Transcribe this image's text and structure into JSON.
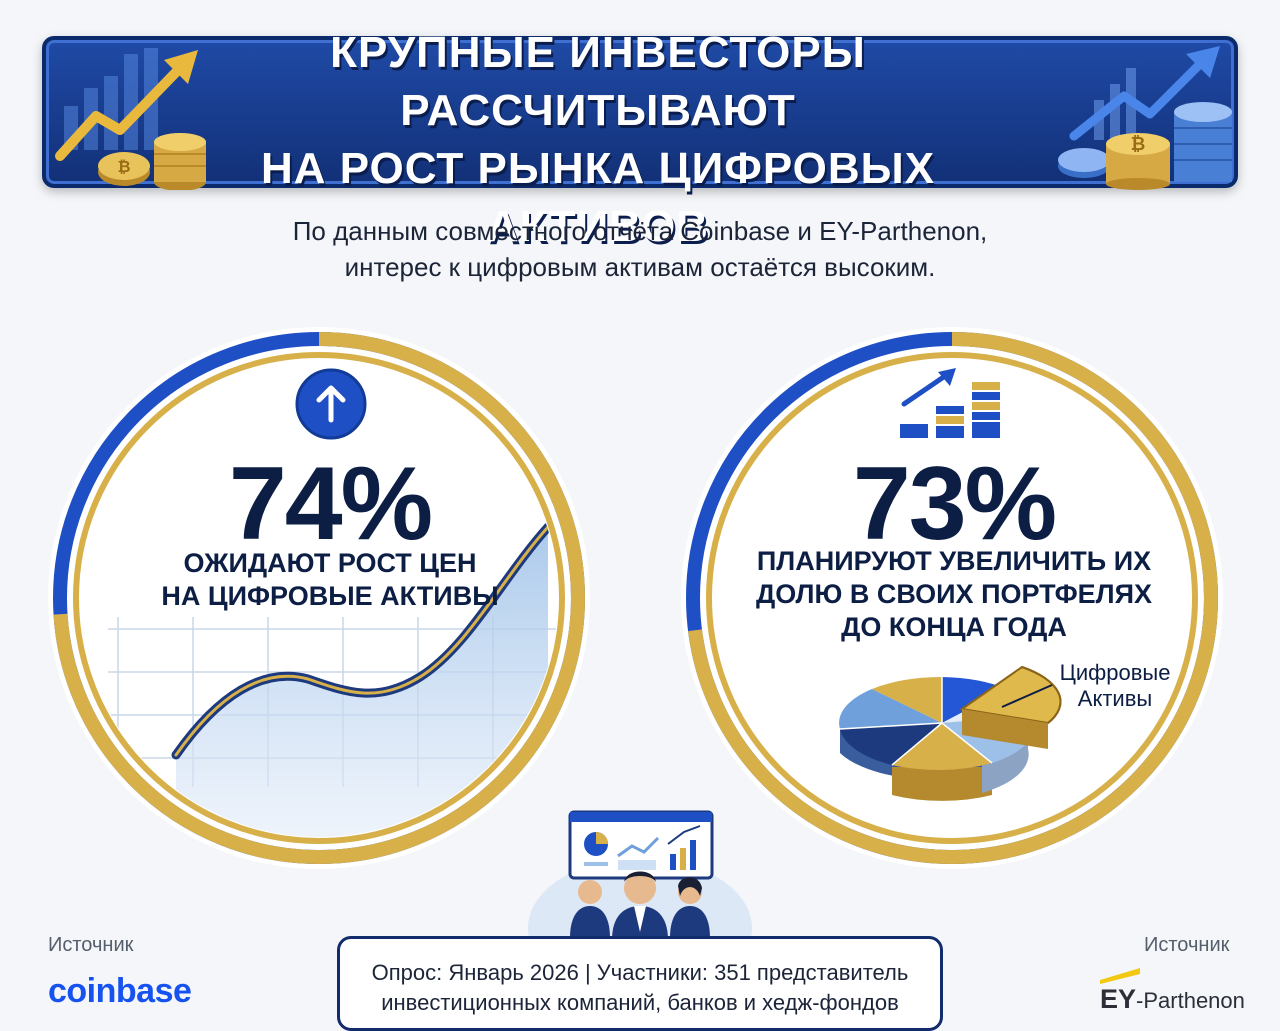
{
  "banner": {
    "title_line1": "КРУПНЫЕ ИНВЕСТОРЫ РАССЧИТЫВАЮТ",
    "title_line2": "НА РОСТ РЫНКА ЦИФРОВЫХ АКТИВОВ",
    "left_icon": "bitcoin-growth-icon",
    "right_icon": "coin-stacks-growth-icon"
  },
  "intro": {
    "line1": "По данным совместного отчёта Coinbase и EY-Parthenon,",
    "line2": "интерес к цифровым активам остаётся высоким."
  },
  "stats": [
    {
      "value": "74%",
      "fraction": 0.74,
      "caption_line1": "ОЖИДАЮТ РОСТ ЦЕН",
      "caption_line2": "НА ЦИФРОВЫЕ АКТИВЫ",
      "icon": "arrow-up-icon"
    },
    {
      "value": "73%",
      "fraction": 0.73,
      "caption_line1": "ПЛАНИРУЮТ УВЕЛИЧИТЬ ИХ",
      "caption_line2": "ДОЛЮ В СВОИХ ПОРТФЕЛЯХ",
      "caption_line3": "ДО КОНЦА ГОДА",
      "icon": "bar-growth-icon",
      "pie_label_line1": "Цифровые",
      "pie_label_line2": "Активы"
    }
  ],
  "sources": {
    "left_label": "Источник",
    "left_logo": "coinbase",
    "right_label": "Источник",
    "right_logo_a": "EY",
    "right_logo_b": "-Parthenon"
  },
  "survey": {
    "line1": "Опрос: Январь 2026 | Участники: 351 представитель",
    "line2": "инвестиционных компаний, банков и хедж-фондов"
  },
  "colors": {
    "navy": "#0d1e45",
    "blue": "#1f4fc4",
    "gold": "#d7b04a",
    "light_blue": "#9cc0e8"
  }
}
